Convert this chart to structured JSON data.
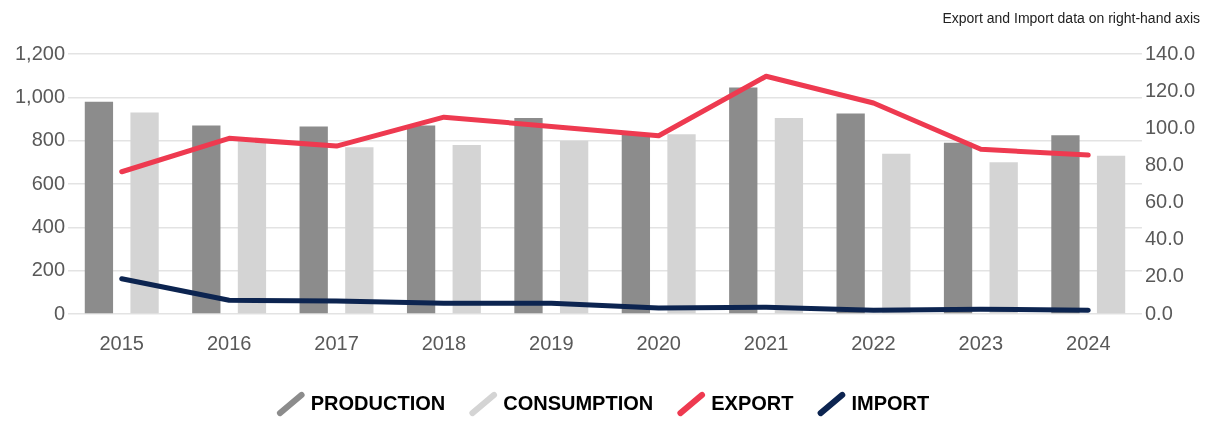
{
  "chart_data": {
    "type": "bar",
    "annotations": [
      "Export and Import data on right-hand axis"
    ],
    "categories": [
      "2015",
      "2016",
      "2017",
      "2018",
      "2019",
      "2020",
      "2021",
      "2022",
      "2023",
      "2024"
    ],
    "series": [
      {
        "name": "PRODUCTION",
        "color": "#8c8c8c",
        "values": [
          980,
          870,
          865,
          870,
          905,
          830,
          1045,
          925,
          790,
          825
        ]
      },
      {
        "name": "CONSUMPTION",
        "color": "#d4d4d4",
        "values": [
          930,
          800,
          770,
          780,
          800,
          830,
          905,
          740,
          700,
          730
        ]
      },
      {
        "name": "EXPORT",
        "type": "line",
        "axis": "y2",
        "color": "#ee3a50",
        "values": [
          76.6,
          94.6,
          90.4,
          106,
          101,
          96,
          128,
          113.6,
          88.7,
          85.6
        ]
      },
      {
        "name": "IMPORT",
        "type": "line",
        "axis": "y2",
        "color": "#0c2450",
        "values": [
          19,
          7.4,
          7,
          5.8,
          5.8,
          3.2,
          3.7,
          2,
          2.6,
          2
        ]
      }
    ],
    "ylim": [
      0,
      1200
    ],
    "yticks": [
      0,
      200,
      400,
      600,
      800,
      {
        "value": 1000,
        "label": "1,000"
      },
      {
        "value": 1200,
        "label": "1,200"
      }
    ],
    "y2lim": [
      0,
      140
    ],
    "y2ticks": [
      {
        "value": 0,
        "label": "0.0"
      },
      {
        "value": 20,
        "label": "20.0"
      },
      {
        "value": 40,
        "label": "40.0"
      },
      {
        "value": 60,
        "label": "60.0"
      },
      {
        "value": 80,
        "label": "80.0"
      },
      {
        "value": 100,
        "label": "100.0"
      },
      {
        "value": 120,
        "label": "120.0"
      },
      {
        "value": 140,
        "label": "140.0"
      }
    ],
    "grid": "y",
    "legend": "bottom",
    "marker": "none",
    "line_style": "solid"
  }
}
